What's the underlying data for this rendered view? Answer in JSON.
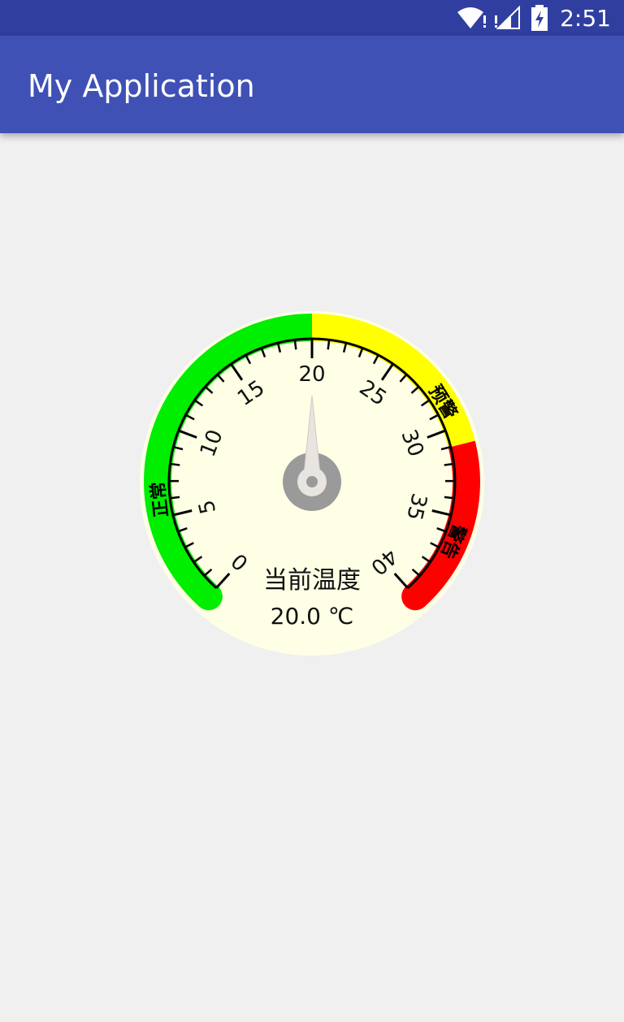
{
  "status_bar": {
    "time": "2:51",
    "icons": [
      "wifi-icon",
      "signal-icon",
      "battery-charging-icon"
    ]
  },
  "app_bar": {
    "title": "My Application"
  },
  "gauge": {
    "min": 0,
    "max": 40,
    "value": 20.0,
    "major_ticks": [
      "0",
      "5",
      "10",
      "15",
      "20",
      "25",
      "30",
      "35",
      "40"
    ],
    "zones": [
      {
        "label": "正常",
        "from": 0,
        "to": 20,
        "color": "#00ee00"
      },
      {
        "label": "预警",
        "from": 20,
        "to": 31,
        "color": "#ffff00"
      },
      {
        "label": "警告",
        "from": 31,
        "to": 40,
        "color": "#ff0000"
      }
    ],
    "face_color": "#ffffe6",
    "needle_color": "#e8e4e0",
    "hub_color": "#9a9a9a",
    "caption": "当前温度",
    "reading": "20.0 ℃"
  }
}
